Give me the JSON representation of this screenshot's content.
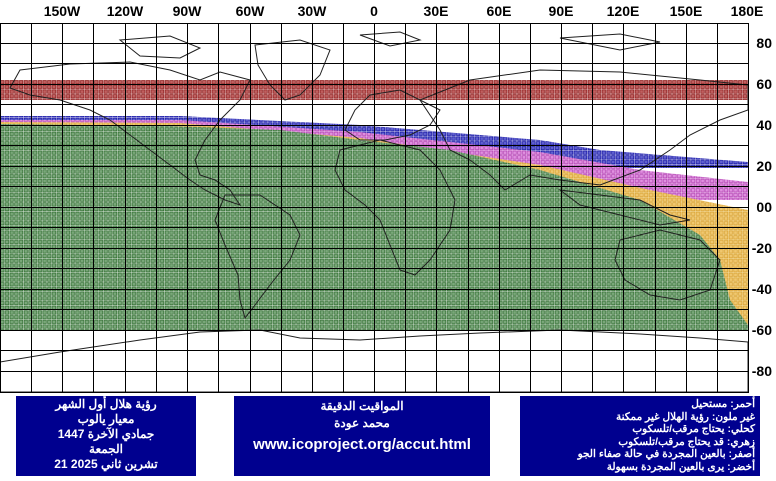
{
  "map": {
    "longitude_labels": [
      "150W",
      "120W",
      "90W",
      "60W",
      "30W",
      "0",
      "30E",
      "60E",
      "90E",
      "120E",
      "150E",
      "180E"
    ],
    "latitude_labels": [
      "80",
      "60",
      "40",
      "20",
      "00",
      "-20",
      "-40",
      "-60",
      "-80"
    ],
    "grid_spacing_degrees": 15,
    "projection": "equirectangular",
    "zones": [
      {
        "name": "impossible",
        "color": "#8b1a1a"
      },
      {
        "name": "not_visible",
        "color": "#ffffff"
      },
      {
        "name": "telescope_only",
        "color": "#2020c0"
      },
      {
        "name": "optical_aid",
        "color": "#c040c0"
      },
      {
        "name": "naked_eye_perfect",
        "color": "#e8b040"
      },
      {
        "name": "naked_eye_easy",
        "color": "#2e8b2e"
      }
    ]
  },
  "info_left": {
    "line1": "رؤية هلال أول الشهر",
    "line2": "معيار يالوب",
    "line3": "جمادي الآخرة 1447",
    "line4": "الجمعة",
    "line5": "تشرين ثاني 2025 21"
  },
  "info_center": {
    "line1": "المواقيت الدقيقة",
    "line2": "محمد عودة",
    "url": "www.icoproject.org/accut.html"
  },
  "legend": [
    {
      "text": "أحمر: مستحيل"
    },
    {
      "text": "غير ملون: رؤية الهلال غير ممكنة"
    },
    {
      "text": "كحلي: يحتاج مرقب/تلسكوب"
    },
    {
      "text": "زهري: قد يحتاج مرقب/تلسكوب"
    },
    {
      "text": "أصفر: بالعين المجردة في حالة صفاء الجو"
    },
    {
      "text": "أخضر: يرى بالعين المجردة بسهولة"
    }
  ]
}
